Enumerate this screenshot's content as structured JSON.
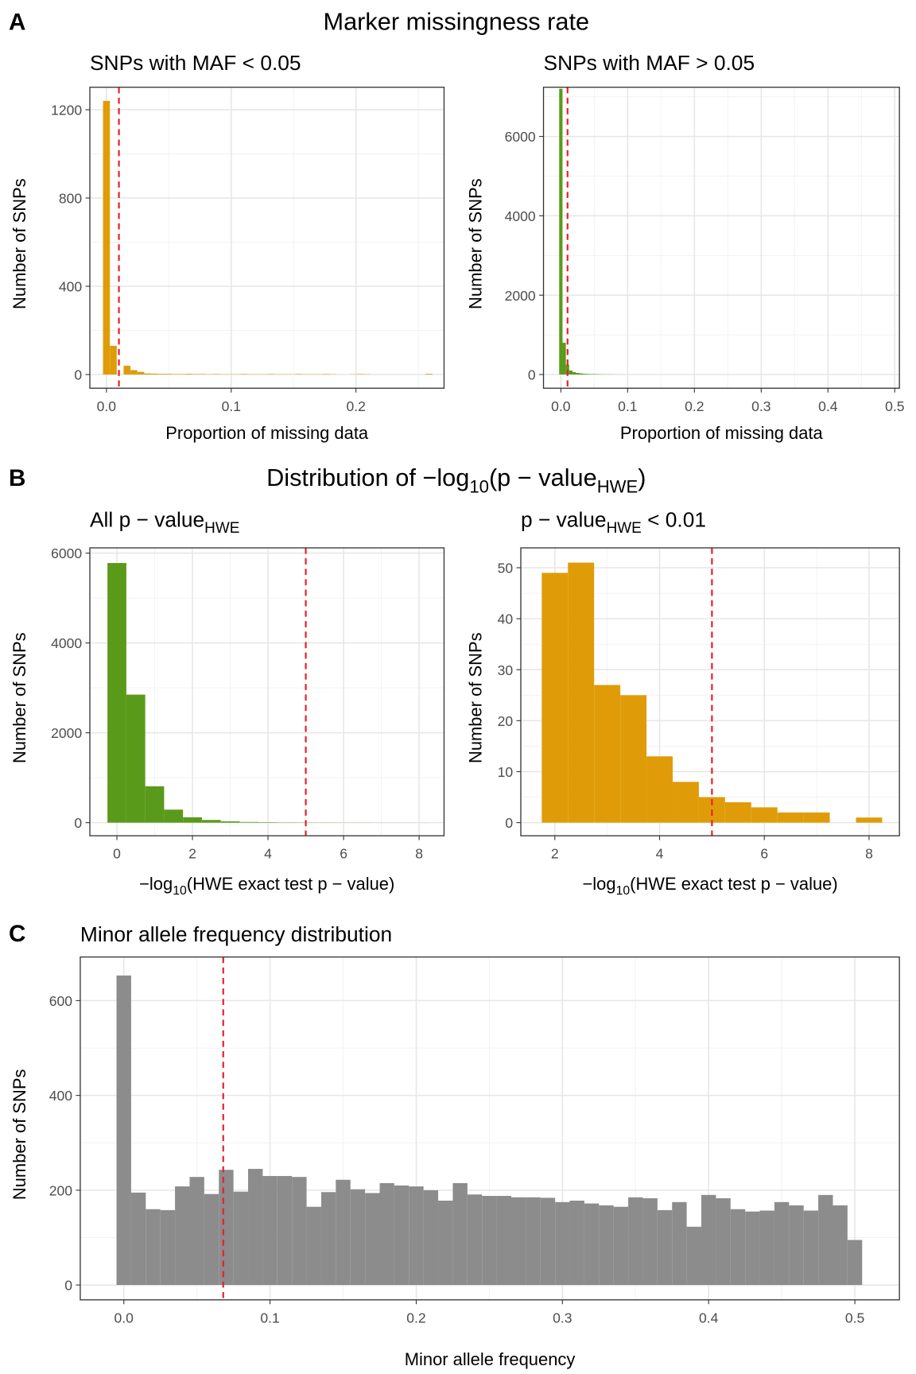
{
  "sections": [
    {
      "label": "A",
      "title": "Marker missingness rate"
    },
    {
      "label": "B",
      "title": [
        "Distribution of −log",
        "10",
        "(p − value",
        "HWE",
        ")"
      ]
    },
    {
      "label": "C"
    }
  ],
  "chart_data": [
    {
      "type": "histogram",
      "title": "SNPs with MAF < 0.05",
      "xlabel": "Proportion of missing data",
      "ylabel": "Number of SNPs",
      "color": "#df9c08",
      "bins": [
        -0.00275,
        0.00275,
        0.00825,
        0.01375,
        0.01925,
        0.02475,
        0.03025,
        0.03575,
        0.04125,
        0.04675,
        0.05225,
        0.05775,
        0.06325,
        0.06875,
        0.07425,
        0.07975,
        0.08525,
        0.09075,
        0.09625,
        0.10175,
        0.10725,
        0.11275,
        0.11825,
        0.12375,
        0.12925,
        0.13475,
        0.14025,
        0.14575,
        0.15125,
        0.15675,
        0.16225,
        0.16775,
        0.17325,
        0.17875,
        0.18425,
        0.18975,
        0.19525,
        0.20075,
        0.20625,
        0.21175,
        0.21725,
        0.22275,
        0.22825,
        0.23375,
        0.23925,
        0.24475,
        0.25025,
        0.25575,
        0.26125
      ],
      "values": [
        1240,
        130,
        0,
        40,
        20,
        12,
        5,
        4,
        3,
        3,
        2,
        2,
        3,
        2,
        2,
        1,
        2,
        1,
        1,
        1,
        2,
        1,
        1,
        1,
        2,
        1,
        1,
        1,
        2,
        1,
        1,
        1,
        2,
        1,
        0,
        0,
        1,
        2,
        1,
        0,
        0,
        0,
        0,
        0,
        0,
        0,
        0,
        3
      ],
      "xlim": [
        -0.0133,
        0.2706
      ],
      "ylim": [
        -62,
        1302
      ],
      "xticks": [
        {
          "value": 0,
          "label": "0.0"
        },
        0.1,
        0.2
      ],
      "yticks": [
        0,
        400,
        800,
        1200
      ],
      "minor_xticks": [
        0.05,
        0.15,
        0.25
      ],
      "minor_yticks": [
        200,
        600,
        1000
      ],
      "grid": true,
      "vline": 0.01,
      "vline_color": "#e8202a"
    },
    {
      "type": "histogram",
      "title": "SNPs with MAF > 0.05",
      "xlabel": "Proportion of missing data",
      "ylabel": "Number of SNPs",
      "color": "#5a9a1a",
      "bins": [
        -0.0025,
        0.0025,
        0.0075,
        0.0125,
        0.0175,
        0.0225,
        0.0275,
        0.0325,
        0.0375,
        0.0425,
        0.0475,
        0.0525,
        0.0575,
        0.0625,
        0.0675,
        0.0725,
        0.0775,
        0.0825,
        0.0875,
        0.0925,
        0.0975
      ],
      "values": [
        7200,
        800,
        250,
        100,
        60,
        40,
        30,
        20,
        15,
        10,
        10,
        8,
        5,
        5,
        3,
        3,
        2,
        2,
        1,
        1
      ],
      "xlim": [
        -0.026,
        0.507
      ],
      "ylim": [
        -345,
        7240
      ],
      "xticks": [
        {
          "value": 0,
          "label": "0.0"
        },
        0.1,
        0.2,
        0.3,
        0.4,
        0.5
      ],
      "yticks": [
        0,
        2000,
        4000,
        6000
      ],
      "minor_xticks": [
        0.05,
        0.15,
        0.25,
        0.35,
        0.45
      ],
      "minor_yticks": [
        1000,
        3000,
        5000,
        7000
      ],
      "grid": true,
      "vline": 0.01,
      "vline_color": "#e8202a"
    },
    {
      "type": "histogram",
      "title": [
        "All p − value",
        "HWE"
      ],
      "xlabel": [
        "−log",
        "10",
        "(HWE exact test p − value)"
      ],
      "ylabel": "Number of SNPs",
      "color": "#5a9a1a",
      "bins": [
        -0.25,
        0.25,
        0.75,
        1.25,
        1.75,
        2.25,
        2.75,
        3.25,
        3.75,
        4.25,
        4.75,
        5.25,
        5.75,
        6.25,
        6.75,
        7.25,
        7.75,
        8.25
      ],
      "values": [
        5780,
        2850,
        810,
        290,
        120,
        60,
        30,
        15,
        10,
        6,
        4,
        3,
        2,
        2,
        1,
        1,
        1
      ],
      "xlim": [
        -0.716,
        8.66
      ],
      "ylim": [
        -291,
        6117
      ],
      "xticks": [
        0,
        2,
        4,
        6,
        8
      ],
      "yticks": [
        0,
        2000,
        4000,
        6000
      ],
      "minor_xticks": [
        1,
        3,
        5,
        7
      ],
      "minor_yticks": [
        1000,
        3000,
        5000
      ],
      "grid": true,
      "vline": 5,
      "vline_color": "#e8202a"
    },
    {
      "type": "histogram",
      "title": [
        "p − value",
        "HWE",
        " < 0.01"
      ],
      "xlabel": [
        "−log",
        "10",
        "(HWE exact test p − value)"
      ],
      "ylabel": "Number of SNPs",
      "color": "#df9c08",
      "bins": [
        1.75,
        2.25,
        2.75,
        3.25,
        3.75,
        4.25,
        4.75,
        5.25,
        5.75,
        6.25,
        6.75,
        7.25,
        7.75,
        8.25
      ],
      "values": [
        49,
        51,
        27,
        25,
        13,
        8,
        5,
        4,
        3,
        2,
        2,
        0,
        1
      ],
      "xlim": [
        1.35,
        8.58
      ],
      "ylim": [
        -2.57,
        53.9
      ],
      "xticks": [
        2,
        4,
        6,
        8
      ],
      "yticks": [
        0,
        10,
        20,
        30,
        40,
        50
      ],
      "minor_xticks": [
        3,
        5,
        7
      ],
      "minor_yticks": [
        5,
        15,
        25,
        35,
        45
      ],
      "grid": true,
      "vline": 5,
      "vline_color": "#e8202a"
    },
    {
      "type": "histogram",
      "title": "Minor allele frequency distribution",
      "xlabel": "Minor allele frequency",
      "ylabel": "Number of SNPs",
      "color": "#8c8c8c",
      "bins": [
        -0.005,
        0.005,
        0.015,
        0.025,
        0.035,
        0.045,
        0.055,
        0.065,
        0.075,
        0.085,
        0.095,
        0.105,
        0.115,
        0.125,
        0.135,
        0.145,
        0.155,
        0.165,
        0.175,
        0.185,
        0.195,
        0.205,
        0.215,
        0.225,
        0.235,
        0.245,
        0.255,
        0.265,
        0.275,
        0.285,
        0.295,
        0.305,
        0.315,
        0.325,
        0.335,
        0.345,
        0.355,
        0.365,
        0.375,
        0.385,
        0.395,
        0.405,
        0.415,
        0.425,
        0.435,
        0.445,
        0.455,
        0.465,
        0.475,
        0.485,
        0.495,
        0.505
      ],
      "values": [
        653,
        195,
        160,
        158,
        208,
        228,
        192,
        243,
        197,
        245,
        230,
        230,
        228,
        165,
        196,
        222,
        202,
        194,
        215,
        210,
        208,
        200,
        178,
        215,
        191,
        188,
        188,
        185,
        185,
        184,
        175,
        178,
        172,
        168,
        165,
        185,
        183,
        158,
        175,
        123,
        190,
        183,
        160,
        155,
        157,
        175,
        168,
        157,
        190,
        168,
        95
      ],
      "xlim": [
        -0.0298,
        0.5305
      ],
      "ylim": [
        -31.3,
        692
      ],
      "xticks": [
        {
          "value": 0,
          "label": "0.0"
        },
        0.1,
        0.2,
        0.3,
        0.4,
        0.5
      ],
      "yticks": [
        0,
        200,
        400,
        600
      ],
      "minor_xticks": [
        0.05,
        0.15,
        0.25,
        0.35,
        0.45
      ],
      "minor_yticks": [
        100,
        300,
        500
      ],
      "grid": true,
      "vline": 0.068,
      "vline_color": "#e8202a"
    }
  ]
}
